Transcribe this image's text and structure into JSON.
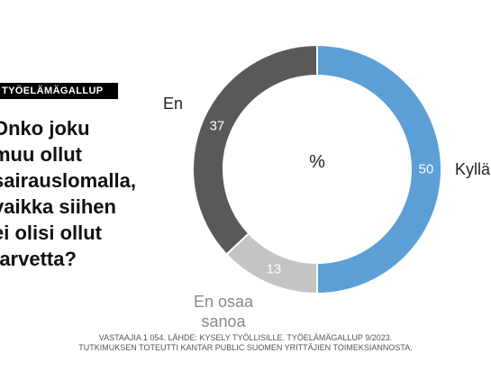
{
  "badge": "TYÖELÄMÄGALLUP",
  "question_lines": [
    "Onko joku",
    "muu ollut",
    "sairauslomalla,",
    "vaikka siihen",
    "ei olisi ollut",
    "tarvetta?"
  ],
  "footer": {
    "line1": "VASTAAJIA 1 054. LÄHDE: KYSELY TYÖLLISILLE. TYÖELÄMÄGALLUP 9/2023.",
    "line2": "TUTKIMUKSEN TOTEUTTI KANTAR PUBLIC SUOMEN YRITTÄJIEN TOIMEKSIANNOSTA."
  },
  "colors": {
    "kylla": "#5b9fd6",
    "en_osaa": "#c4c4c4",
    "en": "#595959"
  },
  "chart_data": {
    "type": "pie",
    "variant": "donut",
    "center_label": "%",
    "slices": [
      {
        "label": "Kyllä",
        "value": 50,
        "color": "#5b9fd6"
      },
      {
        "label": "En osaa sanoa",
        "value": 13,
        "color": "#c4c4c4"
      },
      {
        "label": "En",
        "value": 37,
        "color": "#595959"
      }
    ]
  }
}
